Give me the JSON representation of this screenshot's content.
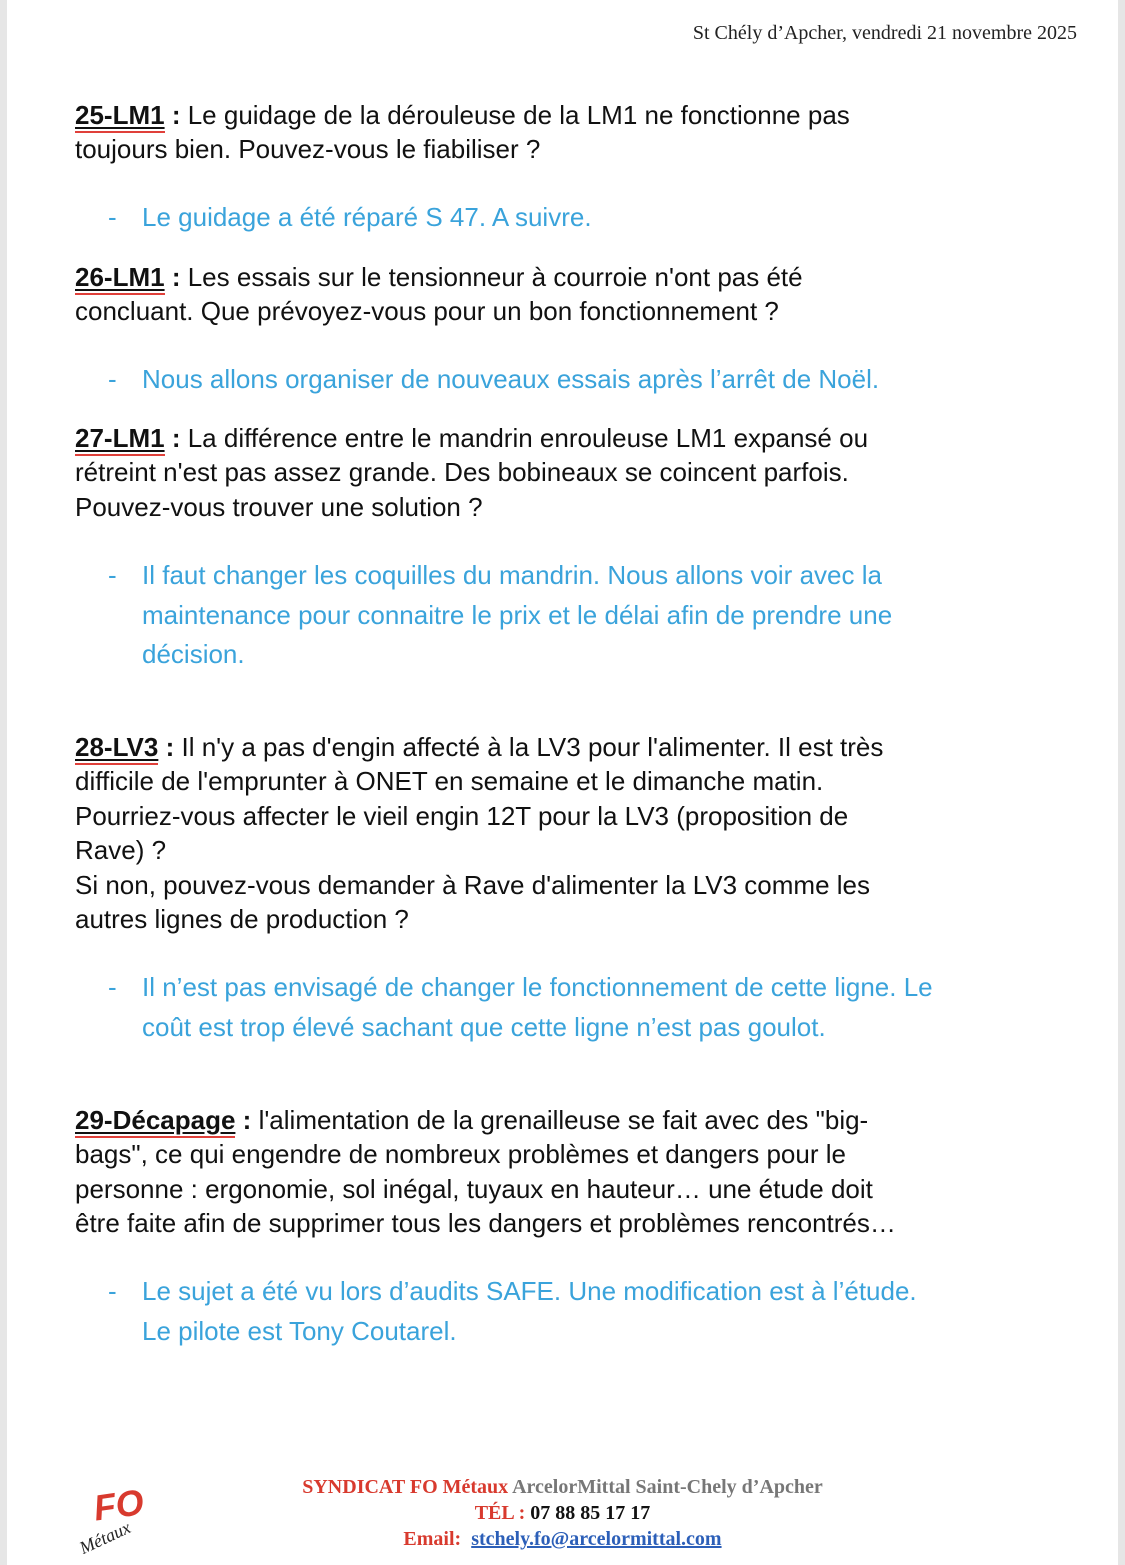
{
  "header": {
    "date_line": "St Chély d’Apcher, vendredi 21 novembre 2025"
  },
  "items": [
    {
      "ref": "25-LM1",
      "question": [
        "Le guidage de la dérouleuse de la LM1 ne fonctionne pas",
        "toujours bien. Pouvez-vous le fiabiliser ?"
      ],
      "answer": [
        "Le guidage a été réparé S 47. A suivre."
      ]
    },
    {
      "ref": "26-LM1",
      "question": [
        "Les essais sur le tensionneur à courroie n'ont pas été",
        "concluant. Que prévoyez-vous pour un bon fonctionnement ?"
      ],
      "answer": [
        "Nous allons organiser de nouveaux essais après l’arrêt de Noël."
      ]
    },
    {
      "ref": "27-LM1",
      "question": [
        "La différence entre le mandrin enrouleuse LM1 expansé ou",
        "rétreint n'est pas assez grande. Des bobineaux se coincent parfois.",
        "Pouvez-vous trouver une solution ?"
      ],
      "answer": [
        "Il faut changer les coquilles du mandrin. Nous allons voir avec la",
        "maintenance pour connaitre le prix et le délai afin de prendre une",
        "décision."
      ]
    },
    {
      "ref": "28-LV3",
      "question": [
        "Il n'y a pas d'engin affecté à la LV3 pour l'alimenter. Il est très",
        "difficile de l'emprunter à ONET en semaine et le dimanche matin.",
        "Pourriez-vous affecter le vieil engin 12T pour la LV3 (proposition de",
        "Rave) ?",
        "Si non, pouvez-vous demander à Rave d'alimenter la LV3 comme les",
        "autres lignes de production ?"
      ],
      "answer": [
        "Il n’est pas envisagé de changer le fonctionnement de cette ligne. Le",
        "coût est trop élevé sachant que cette ligne n’est pas goulot."
      ]
    },
    {
      "ref": "29-Décapage",
      "question": [
        "l'alimentation de la grenailleuse se fait avec des \"big-",
        "bags\", ce qui engendre de nombreux problèmes et dangers pour le",
        "personne : ergonomie, sol inégal, tuyaux en hauteur… une étude doit",
        "être faite afin de supprimer tous les dangers et problèmes rencontrés…"
      ],
      "answer": [
        "Le sujet a été vu lors d’audits SAFE. Une modification est à l’étude.",
        "Le pilote est Tony Coutarel."
      ]
    }
  ],
  "colon": ":",
  "dash": "-",
  "footer": {
    "org_red": "SYNDICAT FO Métaux",
    "org_grey": "ArcelorMittal Saint-Chely d’Apcher",
    "tel_label": "TÉL :",
    "tel": "07 88 85 17 17",
    "email_label": "Email:",
    "email": "stchely.fo@arcelormittal.com",
    "logo_text": "FO Métaux"
  },
  "colors": {
    "answer": "#3aa3db",
    "footer_red": "#d83a2e",
    "link": "#2c5fb8"
  }
}
